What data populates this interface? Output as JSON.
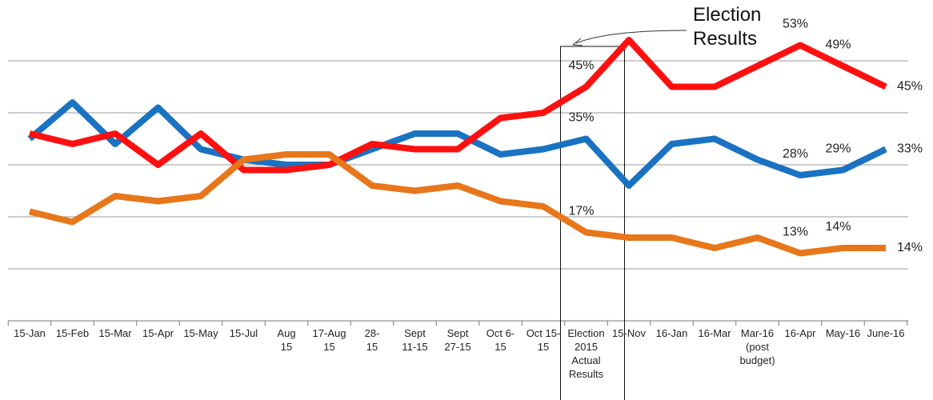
{
  "chart_data": {
    "type": "line",
    "annotation": "Election\nResults",
    "categories": [
      "15-Jan",
      "15-Feb",
      "15-Mar",
      "15-Apr",
      "15-May",
      "15-Jul",
      "Aug\n15",
      "17-Aug\n15",
      "28-\n15",
      "Sept\n11-15",
      "Sept\n27-15",
      "Oct 6-\n15",
      "Oct 15-\n15",
      "Election\n2015\nActual\nResults",
      "15-Nov",
      "16-Jan",
      "16-Mar",
      "Mar-16\n(post\nbudget)",
      "16-Apr",
      "May-16",
      "June-16"
    ],
    "series": [
      {
        "color": "#1a72c2",
        "values": [
          35,
          42,
          34,
          41,
          33,
          31,
          30,
          30,
          33,
          36,
          36,
          32,
          33,
          35,
          26,
          34,
          35,
          31,
          28,
          29,
          33
        ],
        "value_labels": [
          null,
          null,
          null,
          null,
          null,
          null,
          null,
          null,
          null,
          null,
          null,
          null,
          null,
          "35%",
          null,
          null,
          null,
          null,
          "28%",
          "29%",
          "33%"
        ]
      },
      {
        "color": "#ff1010",
        "values": [
          36,
          34,
          36,
          30,
          36,
          29,
          29,
          30,
          34,
          33,
          33,
          39,
          40,
          45,
          54,
          45,
          45,
          49,
          53,
          49,
          45
        ],
        "value_labels": [
          null,
          null,
          null,
          null,
          null,
          null,
          null,
          null,
          null,
          null,
          null,
          null,
          null,
          "45%",
          null,
          null,
          null,
          null,
          "53%",
          "49%",
          "45%"
        ]
      },
      {
        "color": "#e8761a",
        "values": [
          21,
          19,
          24,
          23,
          24,
          31,
          32,
          32,
          26,
          25,
          26,
          23,
          22,
          17,
          16,
          16,
          14,
          16,
          13,
          14,
          14
        ],
        "value_labels": [
          null,
          null,
          null,
          null,
          null,
          null,
          null,
          null,
          null,
          null,
          null,
          null,
          null,
          "17%",
          null,
          null,
          null,
          null,
          "13%",
          "14%",
          "14%"
        ]
      }
    ],
    "ylim": [
      0,
      60
    ],
    "yticks": [
      0,
      10,
      20,
      30,
      40,
      50
    ],
    "grid": true,
    "highlight_category": 13
  }
}
